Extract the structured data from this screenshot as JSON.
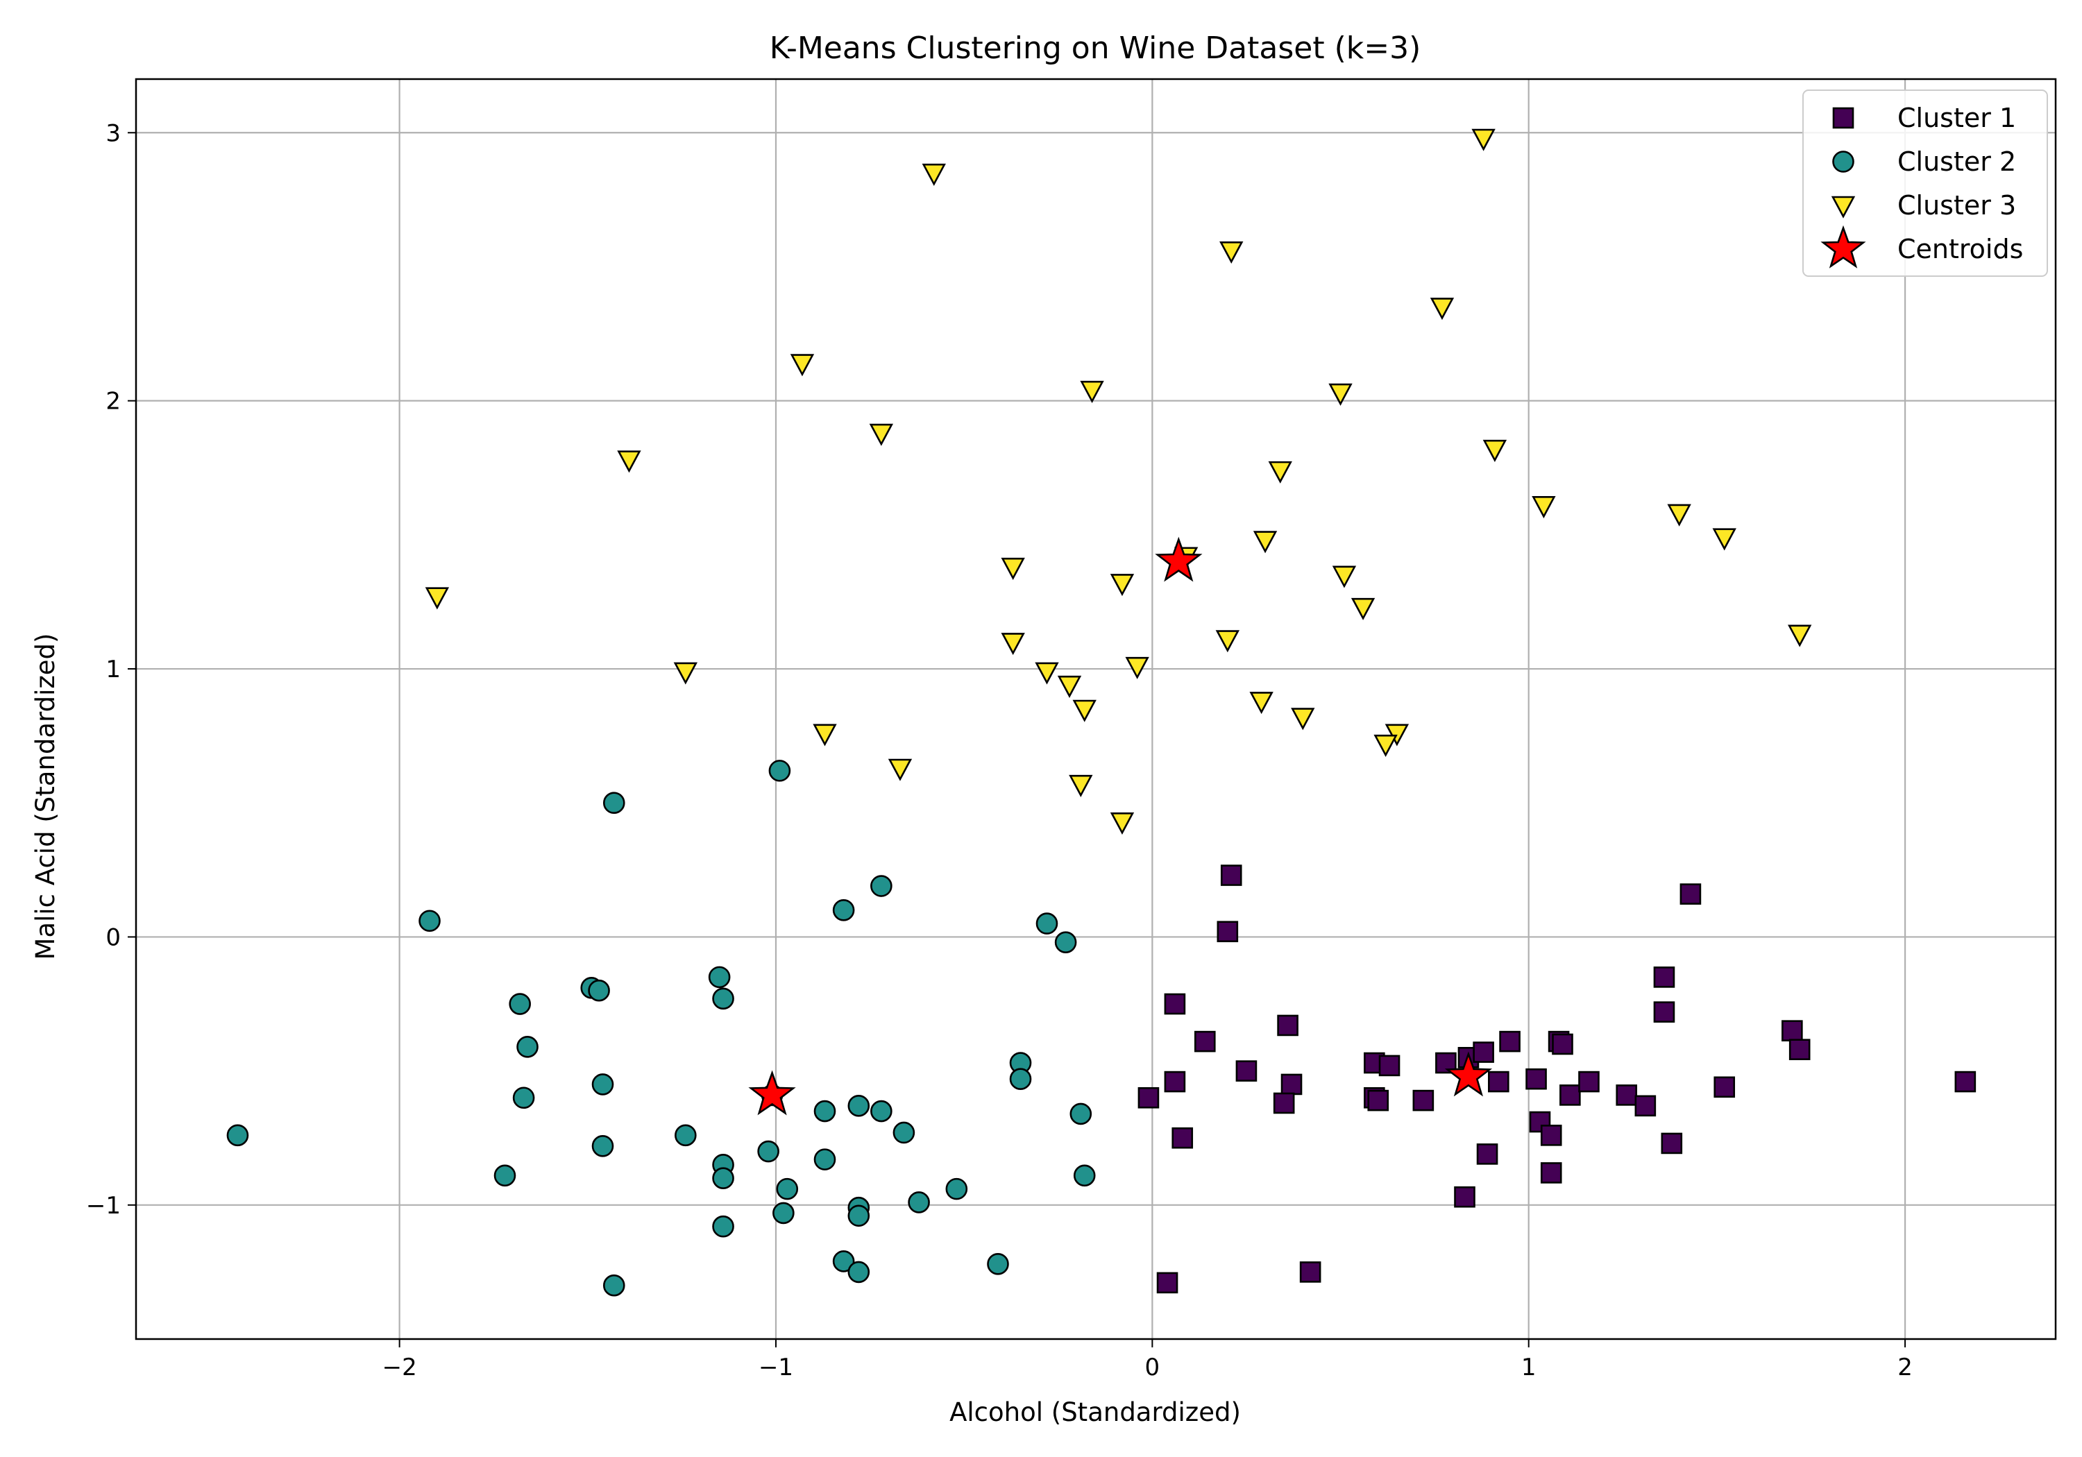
{
  "chart_data": {
    "type": "scatter",
    "title": "K-Means Clustering on Wine Dataset (k=3)",
    "xlabel": "Alcohol (Standardized)",
    "ylabel": "Malic Acid (Standardized)",
    "xlim": [
      -2.7,
      2.4
    ],
    "ylim": [
      -1.5,
      3.2
    ],
    "xticks": [
      -2,
      -1,
      0,
      1,
      2
    ],
    "yticks": [
      -1,
      0,
      1,
      2,
      3
    ],
    "grid": true,
    "legend_position": "top-right",
    "series": [
      {
        "name": "Cluster 1",
        "marker": "square",
        "color": "#440154",
        "points": [
          [
            0.21,
            0.23
          ],
          [
            0.2,
            0.02
          ],
          [
            1.43,
            0.16
          ],
          [
            1.36,
            -0.15
          ],
          [
            1.36,
            -0.28
          ],
          [
            0.06,
            -0.25
          ],
          [
            0.14,
            -0.39
          ],
          [
            0.36,
            -0.33
          ],
          [
            0.25,
            -0.5
          ],
          [
            0.37,
            -0.55
          ],
          [
            0.35,
            -0.62
          ],
          [
            0.06,
            -0.54
          ],
          [
            -0.01,
            -0.6
          ],
          [
            0.08,
            -0.75
          ],
          [
            0.59,
            -0.47
          ],
          [
            0.63,
            -0.48
          ],
          [
            0.59,
            -0.6
          ],
          [
            0.6,
            -0.61
          ],
          [
            0.72,
            -0.61
          ],
          [
            0.78,
            -0.47
          ],
          [
            0.84,
            -0.45
          ],
          [
            0.88,
            -0.43
          ],
          [
            0.92,
            -0.54
          ],
          [
            0.95,
            -0.39
          ],
          [
            1.02,
            -0.53
          ],
          [
            1.08,
            -0.39
          ],
          [
            1.09,
            -0.4
          ],
          [
            1.03,
            -0.69
          ],
          [
            1.06,
            -0.74
          ],
          [
            1.11,
            -0.59
          ],
          [
            1.16,
            -0.54
          ],
          [
            1.26,
            -0.59
          ],
          [
            1.31,
            -0.63
          ],
          [
            0.89,
            -0.81
          ],
          [
            1.06,
            -0.88
          ],
          [
            1.38,
            -0.77
          ],
          [
            1.7,
            -0.35
          ],
          [
            1.72,
            -0.42
          ],
          [
            1.52,
            -0.56
          ],
          [
            2.16,
            -0.54
          ],
          [
            0.83,
            -0.97
          ],
          [
            0.42,
            -1.25
          ],
          [
            0.04,
            -1.29
          ]
        ]
      },
      {
        "name": "Cluster 2",
        "marker": "circle",
        "color": "#21918c",
        "points": [
          [
            -0.99,
            0.62
          ],
          [
            -1.43,
            0.5
          ],
          [
            -0.72,
            0.19
          ],
          [
            -0.82,
            0.1
          ],
          [
            -1.92,
            0.06
          ],
          [
            -0.28,
            0.05
          ],
          [
            -0.23,
            -0.02
          ],
          [
            -1.15,
            -0.15
          ],
          [
            -1.14,
            -0.23
          ],
          [
            -1.49,
            -0.19
          ],
          [
            -1.47,
            -0.2
          ],
          [
            -1.68,
            -0.25
          ],
          [
            -1.66,
            -0.41
          ],
          [
            -1.46,
            -0.55
          ],
          [
            -1.67,
            -0.6
          ],
          [
            -1.01,
            -0.59
          ],
          [
            -0.35,
            -0.47
          ],
          [
            -0.35,
            -0.53
          ],
          [
            -0.87,
            -0.65
          ],
          [
            -0.78,
            -0.63
          ],
          [
            -0.72,
            -0.65
          ],
          [
            -0.19,
            -0.66
          ],
          [
            -0.66,
            -0.73
          ],
          [
            -1.24,
            -0.74
          ],
          [
            -1.46,
            -0.78
          ],
          [
            -1.02,
            -0.8
          ],
          [
            -1.14,
            -0.85
          ],
          [
            -0.87,
            -0.83
          ],
          [
            -1.72,
            -0.89
          ],
          [
            -1.14,
            -0.9
          ],
          [
            -0.97,
            -0.94
          ],
          [
            -0.52,
            -0.94
          ],
          [
            -0.18,
            -0.89
          ],
          [
            -0.62,
            -0.99
          ],
          [
            -0.98,
            -1.03
          ],
          [
            -0.78,
            -1.01
          ],
          [
            -0.78,
            -1.04
          ],
          [
            -1.14,
            -1.08
          ],
          [
            -0.82,
            -1.21
          ],
          [
            -0.41,
            -1.22
          ],
          [
            -0.78,
            -1.25
          ],
          [
            -1.43,
            -1.3
          ],
          [
            -2.43,
            -0.74
          ]
        ]
      },
      {
        "name": "Cluster 3",
        "marker": "triangle-down",
        "color": "#fde725",
        "points": [
          [
            0.88,
            2.98
          ],
          [
            -0.58,
            2.85
          ],
          [
            0.21,
            2.56
          ],
          [
            0.77,
            2.35
          ],
          [
            -0.93,
            2.14
          ],
          [
            -0.16,
            2.04
          ],
          [
            0.5,
            2.03
          ],
          [
            -0.72,
            1.88
          ],
          [
            0.91,
            1.82
          ],
          [
            -1.39,
            1.78
          ],
          [
            0.34,
            1.74
          ],
          [
            1.04,
            1.61
          ],
          [
            1.4,
            1.58
          ],
          [
            1.52,
            1.49
          ],
          [
            0.3,
            1.48
          ],
          [
            0.09,
            1.42
          ],
          [
            -0.37,
            1.38
          ],
          [
            0.51,
            1.35
          ],
          [
            -0.08,
            1.32
          ],
          [
            -1.9,
            1.27
          ],
          [
            0.56,
            1.23
          ],
          [
            1.72,
            1.13
          ],
          [
            0.2,
            1.11
          ],
          [
            -0.37,
            1.1
          ],
          [
            -0.04,
            1.01
          ],
          [
            -0.28,
            0.99
          ],
          [
            -1.24,
            0.99
          ],
          [
            -0.22,
            0.94
          ],
          [
            0.29,
            0.88
          ],
          [
            -0.18,
            0.85
          ],
          [
            0.4,
            0.82
          ],
          [
            -0.87,
            0.76
          ],
          [
            0.65,
            0.76
          ],
          [
            0.62,
            0.72
          ],
          [
            -0.67,
            0.63
          ],
          [
            -0.19,
            0.57
          ],
          [
            -0.08,
            0.43
          ]
        ]
      },
      {
        "name": "Centroids",
        "marker": "star",
        "color": "#ff0000",
        "points": [
          [
            0.07,
            1.4
          ],
          [
            0.84,
            -0.52
          ],
          [
            -1.01,
            -0.59
          ]
        ]
      }
    ]
  }
}
